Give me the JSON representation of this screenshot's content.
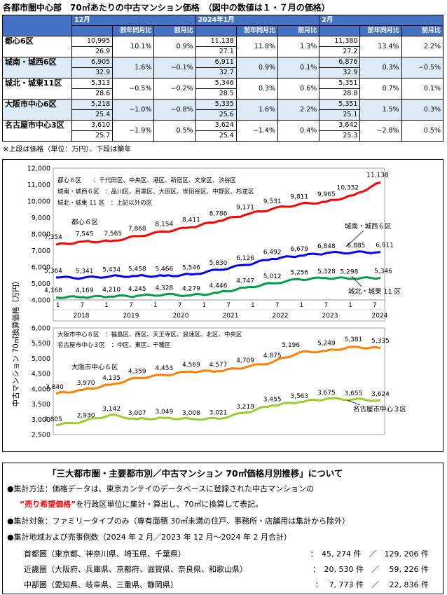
{
  "title": "各都市圏中心部　70㎡あたりの中古マンション価格　（図中の数値は１・７月の価格）",
  "table": {
    "periods": [
      "12月",
      "2024年1月",
      "2月"
    ],
    "sub_headers": [
      "前年同月比",
      "前月比"
    ],
    "rows": [
      {
        "name": "都心6区",
        "cells": [
          [
            "10,995",
            "26.9",
            "10.1%",
            "0.9%"
          ],
          [
            "11,138",
            "27.1",
            "11.8%",
            "1.3%"
          ],
          [
            "11,380",
            "27.2",
            "13.4%",
            "2.2%"
          ]
        ]
      },
      {
        "name": "城南・城西6区",
        "cells": [
          [
            "6,905",
            "32.9",
            "1.6%",
            "−0.1%"
          ],
          [
            "6,911",
            "32.7",
            "0.9%",
            "0.1%"
          ],
          [
            "6,876",
            "32.9",
            "0.3%",
            "−0.5%"
          ]
        ]
      },
      {
        "name": "城北・城東11区",
        "cells": [
          [
            "5,313",
            "28.6",
            "−0.5%",
            "−0.2%"
          ],
          [
            "5,346",
            "28.5",
            "0.3%",
            "0.6%"
          ],
          [
            "5,351",
            "28.8",
            "0.7%",
            "0.1%"
          ]
        ]
      },
      {
        "name": "大阪市中心6区",
        "cells": [
          [
            "5,218",
            "25.4",
            "−1.0%",
            "−0.8%"
          ],
          [
            "5,335",
            "25.6",
            "1.6%",
            "2.2%"
          ],
          [
            "5,351",
            "25.1",
            "1.5%",
            "0.3%"
          ]
        ]
      },
      {
        "name": "名古屋市中心3区",
        "cells": [
          [
            "3,610",
            "25.7",
            "−1.9%",
            "0.5%"
          ],
          [
            "3,624",
            "25.4",
            "−1.4%",
            "0.4%"
          ],
          [
            "3,642",
            "25.3",
            "−2.8%",
            "0.5%"
          ]
        ]
      }
    ]
  },
  "note": "※上段は価格（単位：万円）、下段は築年",
  "chart_data": [
    {
      "type": "line",
      "ylabel": "中古マンション 70㎡換算価格（万円）",
      "ylim": [
        4000,
        12000
      ],
      "yticks": [
        "4,000",
        "5,000",
        "6,000",
        "7,000",
        "8,000",
        "9,000",
        "10,000",
        "11,000",
        "12,000"
      ],
      "x_ticks": [
        "1",
        "7",
        "1",
        "7",
        "1",
        "7",
        "1",
        "7",
        "1",
        "7",
        "1",
        "7",
        "1",
        "7"
      ],
      "x_years": [
        "2018",
        "2019",
        "2020",
        "2021",
        "2022",
        "2023",
        "2024"
      ],
      "x_points": [
        "2018/1",
        "2018/7",
        "2019/1",
        "2019/7",
        "2020/1",
        "2020/7",
        "2021/1",
        "2021/7",
        "2022/1",
        "2022/7",
        "2023/1",
        "2023/7",
        "2024/1"
      ],
      "legend": [
        "都心６区　　：千代田区、中央区、港区、新宿区、文京区、渋谷区",
        "城南・城西６区　：品川区、目黒区、大田区、世田谷区、中野区、杉並区",
        "城北・城東 11 区　：上記以外の区"
      ],
      "series": [
        {
          "name": "都心６区",
          "color": "#ff0000",
          "values": [
            7354,
            7545,
            7565,
            7868,
            8154,
            8411,
            8786,
            9171,
            9531,
            9811,
            9965,
            10352,
            11138
          ],
          "labels": [
            "7,354",
            "7,545",
            "7,565",
            "7,868",
            "8,154",
            "8,411",
            "8,786",
            "9,171",
            "9,531",
            "9,811",
            "9,965",
            "10,352",
            "11,138"
          ]
        },
        {
          "name": "城南・城西６区",
          "color": "#0000ff",
          "values": [
            5364,
            5341,
            5434,
            5458,
            5466,
            5546,
            5830,
            6126,
            6492,
            6679,
            6848,
            6885,
            6911
          ],
          "labels": [
            "5,364",
            "5,341",
            "5,434",
            "5,458",
            "5,466",
            "5,546",
            "5,830",
            "6,126",
            "6,492",
            "6,679",
            "6,848",
            "6,885",
            "6,911"
          ]
        },
        {
          "name": "城北・城東 11 区",
          "color": "#00a040",
          "values": [
            4168,
            4169,
            4210,
            4245,
            4328,
            4279,
            4446,
            4747,
            5012,
            5256,
            5328,
            5298,
            5346
          ],
          "labels": [
            "4,168",
            "4,169",
            "4,210",
            "4,245",
            "4,328",
            "4,279",
            "4,446",
            "4,747",
            "5,012",
            "5,256",
            "5,328",
            "5,298",
            "5,346"
          ]
        }
      ]
    },
    {
      "type": "line",
      "ylim": [
        2500,
        6000
      ],
      "yticks": [
        "2,500",
        "3,000",
        "3,500",
        "4,000",
        "4,500",
        "5,000",
        "5,500",
        "6,000"
      ],
      "legend": [
        "大阪市中心６区　：福島区、西区、天王寺区、浪速区、北区、中央区",
        "名古屋市中心３区　：中区、東区、千種区"
      ],
      "series": [
        {
          "name": "大阪市中心６区",
          "color": "#ff7f00",
          "values": [
            3840,
            3970,
            4135,
            4359,
            4453,
            4569,
            4577,
            4709,
            4875,
            5196,
            5249,
            5381,
            5335
          ],
          "labels": [
            "3,840",
            "3,970",
            "4,135",
            "4,359",
            "4,453",
            "4,569",
            "4,577",
            "4,709",
            "4,875",
            "5,196",
            "5,249",
            "5,381",
            "5,335"
          ]
        },
        {
          "name": "名古屋市中心３区",
          "color": "#9acd32",
          "values": [
            2805,
            2930,
            3142,
            3007,
            3049,
            3008,
            3021,
            3219,
            3455,
            3563,
            3675,
            3655,
            3624
          ],
          "labels": [
            "2,805",
            "2,930",
            "3,142",
            "3,007",
            "3,049",
            "3,008",
            "3,021",
            "3,219",
            "3,455",
            "3,563",
            "3,675",
            "3,655",
            "3,624"
          ]
        }
      ]
    }
  ],
  "info": {
    "title": "「三大都市圏・主要都市別／中古マンション 70㎡価格月別推移」について",
    "l1a": "●集計方法：価格データは、東京カンテイのデータベースに登録された中古マンションの",
    "l2red": "“売り希望価格”",
    "l2b": "を行政区単位に集計・算出し、70㎡に換算して表記。",
    "l3": "●集計対象：ファミリータイプのみ（専有面積 30㎡未満の住戸、事務所・店舗用は集計から除外）",
    "l4": "●集計地域および売事例数（2024 年 2 月／2023 年 12 月〜2024 年 2 月合計）",
    "regions": [
      {
        "name": "首都圏（東京都、神奈川県、埼玉県、千葉県）",
        "count": "：　45, 274 件　／　129, 206 件"
      },
      {
        "name": "近畿圏（大阪府、兵庫県、京都府、滋賀県、奈良県、和歌山県）",
        "count": "：　20, 530 件　／　 59, 226 件"
      },
      {
        "name": "中部圏（愛知県、岐阜県、三重県、静岡県）",
        "count": "：　 7, 773 件　／　 22, 836 件"
      }
    ]
  }
}
